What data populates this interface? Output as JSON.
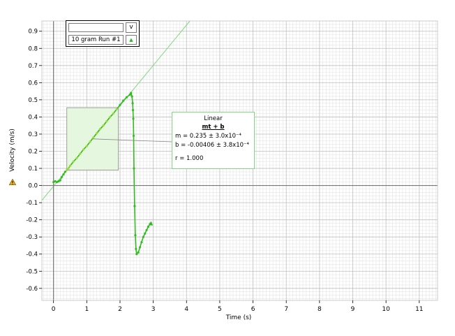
{
  "legend": {
    "input_value": "",
    "dropdown_label": "v",
    "run_label": "10 gram Run #1",
    "marker_icon": "triangle-marker-icon",
    "marker_glyph": "▲"
  },
  "fit": {
    "title": "Linear",
    "equation": "mt + b",
    "m_line": "m = 0.235      ± 3.0x10⁻⁴",
    "b_line": "b  = -0.00406 ± 3.8x10⁻⁴",
    "r_line": "r = 1.000"
  },
  "axes": {
    "x_title": "Time (s)",
    "y_title": "Velocity (m/s)"
  },
  "colors": {
    "data": "#33bb22",
    "data_light": "#99dd33",
    "fit_line": "#7fd77f",
    "selection_fill": "#e6f7e0"
  },
  "chart_data": {
    "type": "scatter",
    "xlabel": "Time (s)",
    "ylabel": "Velocity (m/s)",
    "xlim": [
      -0.35,
      11.55
    ],
    "ylim": [
      -0.67,
      0.96
    ],
    "x_ticks": [
      0,
      1,
      2,
      3,
      4,
      5,
      6,
      7,
      8,
      9,
      10,
      11
    ],
    "y_ticks": [
      -0.6,
      -0.5,
      -0.4,
      -0.3,
      -0.2,
      -0.1,
      0.0,
      0.1,
      0.2,
      0.3,
      0.4,
      0.5,
      0.6,
      0.7,
      0.8,
      0.9
    ],
    "x_tick_labels": [
      "0",
      "1",
      "2",
      "3",
      "4",
      "5",
      "6",
      "7",
      "8",
      "9",
      "10",
      "11"
    ],
    "y_tick_labels": [
      "-0.6",
      "-0.5",
      "-0.4",
      "-0.3",
      "-0.2",
      "-0.1",
      "0.0",
      "0.1",
      "0.2",
      "0.3",
      "0.4",
      "0.5",
      "0.6",
      "0.7",
      "0.8",
      "0.9"
    ],
    "grid": true,
    "series": [
      {
        "name": "10 gram Run #1",
        "x": [
          0.0,
          0.05,
          0.1,
          0.15,
          0.2,
          0.25,
          0.3,
          0.35,
          0.4,
          0.45,
          0.5,
          0.6,
          0.7,
          0.8,
          0.9,
          1.0,
          1.1,
          1.2,
          1.3,
          1.4,
          1.5,
          1.6,
          1.7,
          1.8,
          1.9,
          2.0,
          2.1,
          2.2,
          2.3,
          2.33,
          2.36,
          2.38,
          2.39,
          2.4,
          2.41,
          2.42,
          2.44,
          2.46,
          2.48,
          2.5,
          2.55,
          2.6,
          2.65,
          2.7,
          2.75,
          2.8,
          2.85,
          2.9,
          2.93
        ],
        "y": [
          0.02,
          0.025,
          0.02,
          0.025,
          0.03,
          0.05,
          0.065,
          0.08,
          0.09,
          0.1,
          0.115,
          0.14,
          0.16,
          0.185,
          0.21,
          0.23,
          0.255,
          0.28,
          0.305,
          0.33,
          0.35,
          0.375,
          0.4,
          0.42,
          0.445,
          0.47,
          0.495,
          0.515,
          0.53,
          0.54,
          0.52,
          0.48,
          0.44,
          0.39,
          0.29,
          0.1,
          -0.12,
          -0.29,
          -0.37,
          -0.4,
          -0.39,
          -0.36,
          -0.33,
          -0.3,
          -0.28,
          -0.26,
          -0.24,
          -0.225,
          -0.22
        ]
      }
    ],
    "fit_line": {
      "m": 0.235,
      "b": -0.00406
    },
    "selection_range": [
      0.4,
      1.95
    ]
  }
}
